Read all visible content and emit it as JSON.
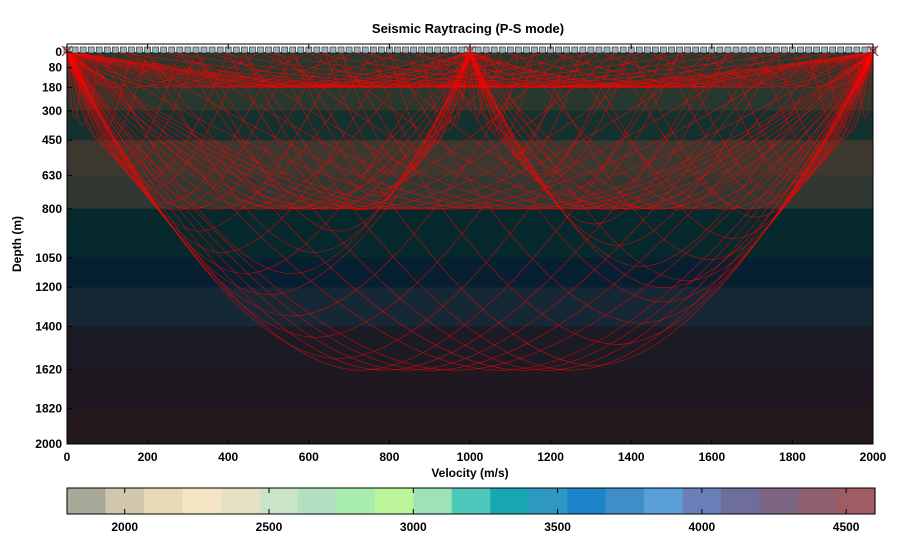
{
  "chart_data": {
    "type": "line",
    "title": "Seismic Raytracing (P-S mode)",
    "xlabel": "Velocity (m/s)",
    "ylabel": "Depth (m)",
    "xlim": [
      0,
      2000
    ],
    "ylim": [
      2000,
      0
    ],
    "y_inverted": true,
    "x_ticks": [
      0,
      200,
      400,
      600,
      800,
      1000,
      1200,
      1400,
      1600,
      1800,
      2000
    ],
    "x_tick_labels": [
      "0",
      "200",
      "400",
      "600",
      "800",
      "1000",
      "1200",
      "1400",
      "1600",
      "1800",
      "2000"
    ],
    "y_ticks": [
      0,
      80,
      180,
      300,
      450,
      630,
      800,
      1050,
      1200,
      1400,
      1620,
      1820,
      2000
    ],
    "y_tick_labels": [
      "0",
      "80",
      "180",
      "300",
      "450",
      "630",
      "800",
      "1050",
      "1200",
      "1400",
      "1620",
      "1820",
      "2000"
    ],
    "layer_boundaries": [
      0,
      80,
      180,
      300,
      450,
      630,
      800,
      1050,
      1200,
      1400,
      1620,
      1820,
      2000
    ],
    "layer_velocities": [
      3000,
      3100,
      3050,
      3150,
      2300,
      2500,
      3300,
      3600,
      3900,
      4100,
      4250,
      4400
    ],
    "sources": [
      {
        "x": 0,
        "z": 0
      },
      {
        "x": 1000,
        "z": 0
      },
      {
        "x": 2000,
        "z": 0
      }
    ],
    "receiver_spacing": 20,
    "colorbar": {
      "orientation": "horizontal",
      "range": [
        1800,
        4600
      ],
      "ticks": [
        2000,
        2500,
        3000,
        3500,
        4000,
        4500
      ],
      "tick_labels": [
        "2000",
        "2500",
        "3000",
        "3500",
        "4000",
        "4500"
      ],
      "colors": [
        "#a9a99a",
        "#d1c7ae",
        "#ead9b9",
        "#f3e4c4",
        "#e6e1c4",
        "#c9e4c7",
        "#b2e0c1",
        "#a9ecb0",
        "#bdf59a",
        "#9ee2b9",
        "#4cc9ba",
        "#16a7b2",
        "#2f98c2",
        "#1b84c9",
        "#3f8ec8",
        "#5a9fd8",
        "#6a7fb8",
        "#6f6d9c",
        "#7d6584",
        "#8e6071",
        "#9f5d63"
      ]
    },
    "colors": {
      "rays": "#ff0000",
      "background": "#000000",
      "receivers": "#9ab0b8",
      "source_marker": "#b22222"
    }
  }
}
